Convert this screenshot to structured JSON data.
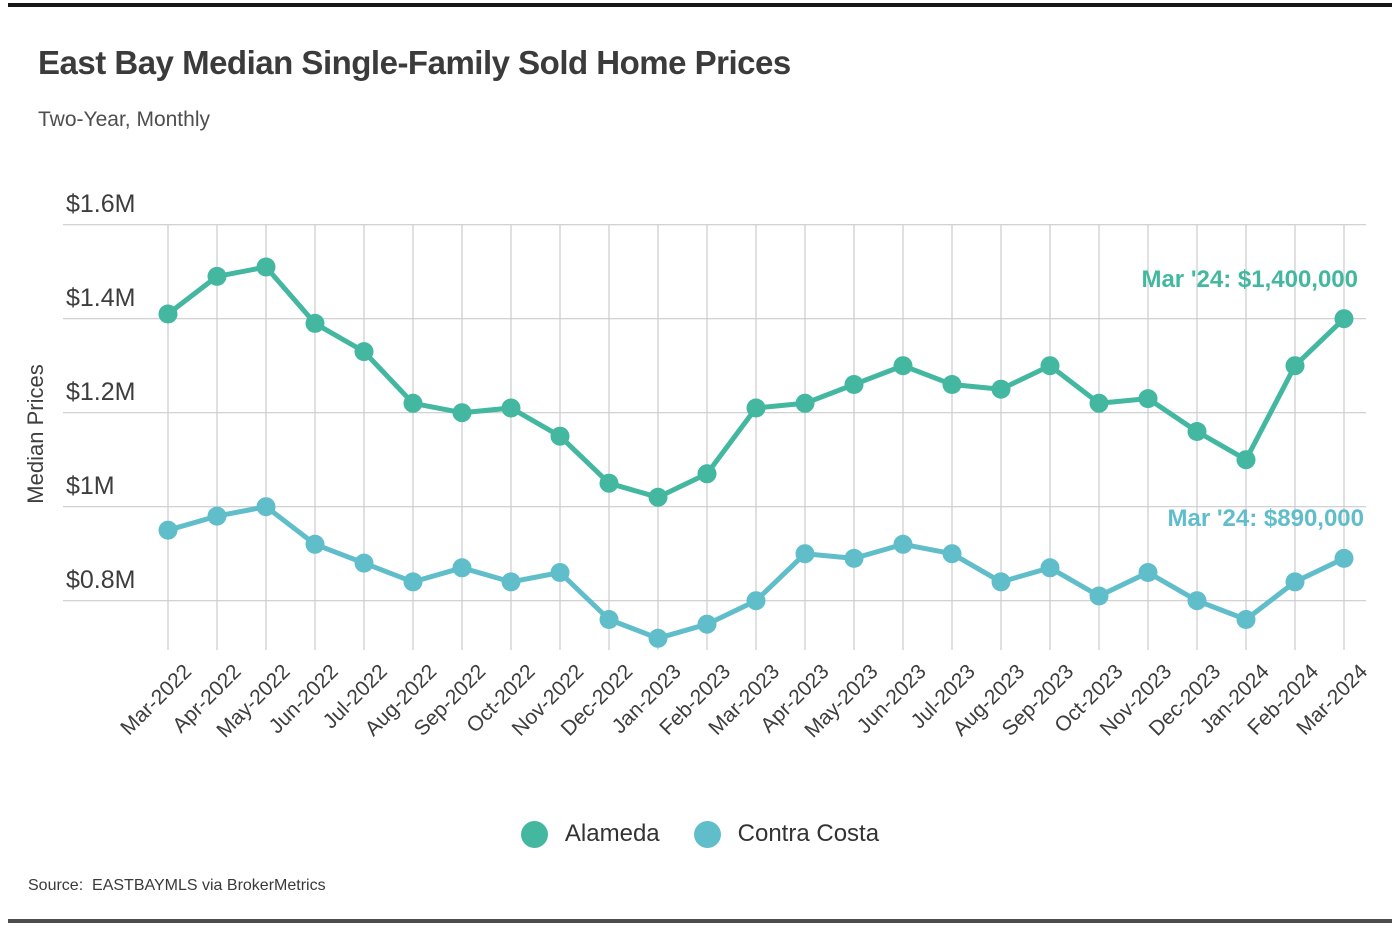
{
  "header": {
    "title": "East Bay Median Single-Family Sold Home Prices",
    "subtitle": "Two-Year, Monthly"
  },
  "source_note": "Source:  EASTBAYMLS via BrokerMetrics",
  "chart_data": {
    "type": "line",
    "title": "East Bay Median Single-Family Sold Home Prices",
    "subtitle": "Two-Year, Monthly",
    "xlabel": "",
    "ylabel": "Median Prices",
    "unit": "millions_usd",
    "grid": true,
    "grid_color": "#cbcbcb",
    "legend_position": "bottom",
    "ylim": [
      0.7,
      1.62
    ],
    "y_ticks": [
      {
        "label": "$1.6M",
        "value": 1.6
      },
      {
        "label": "$1.4M",
        "value": 1.4
      },
      {
        "label": "$1.2M",
        "value": 1.2
      },
      {
        "label": "$1M",
        "value": 1.0
      },
      {
        "label": "$0.8M",
        "value": 0.8
      }
    ],
    "categories": [
      "Mar-2022",
      "Apr-2022",
      "May-2022",
      "Jun-2022",
      "Jul-2022",
      "Aug-2022",
      "Sep-2022",
      "Oct-2022",
      "Nov-2022",
      "Dec-2022",
      "Jan-2023",
      "Feb-2023",
      "Mar-2023",
      "Apr-2023",
      "May-2023",
      "Jun-2023",
      "Jul-2023",
      "Aug-2023",
      "Sep-2023",
      "Oct-2023",
      "Nov-2023",
      "Dec-2023",
      "Jan-2024",
      "Feb-2024",
      "Mar-2024"
    ],
    "series": [
      {
        "name": "Alameda",
        "color": "#43b7a0",
        "values": [
          1.41,
          1.49,
          1.51,
          1.39,
          1.33,
          1.22,
          1.2,
          1.21,
          1.15,
          1.05,
          1.02,
          1.07,
          1.21,
          1.22,
          1.26,
          1.3,
          1.26,
          1.25,
          1.3,
          1.22,
          1.23,
          1.16,
          1.1,
          1.3,
          1.4
        ]
      },
      {
        "name": "Contra Costa",
        "color": "#60bdca",
        "values": [
          0.95,
          0.98,
          1.0,
          0.92,
          0.88,
          0.84,
          0.87,
          0.84,
          0.86,
          0.76,
          0.72,
          0.75,
          0.8,
          0.9,
          0.89,
          0.92,
          0.9,
          0.84,
          0.87,
          0.81,
          0.86,
          0.8,
          0.76,
          0.84,
          0.89
        ]
      }
    ],
    "annotations": [
      {
        "text": "Mar '24: $1,400,000",
        "series": "Alameda",
        "color": "#43b7a0"
      },
      {
        "text": "Mar '24: $890,000",
        "series": "Contra Costa",
        "color": "#60bdca"
      }
    ]
  }
}
